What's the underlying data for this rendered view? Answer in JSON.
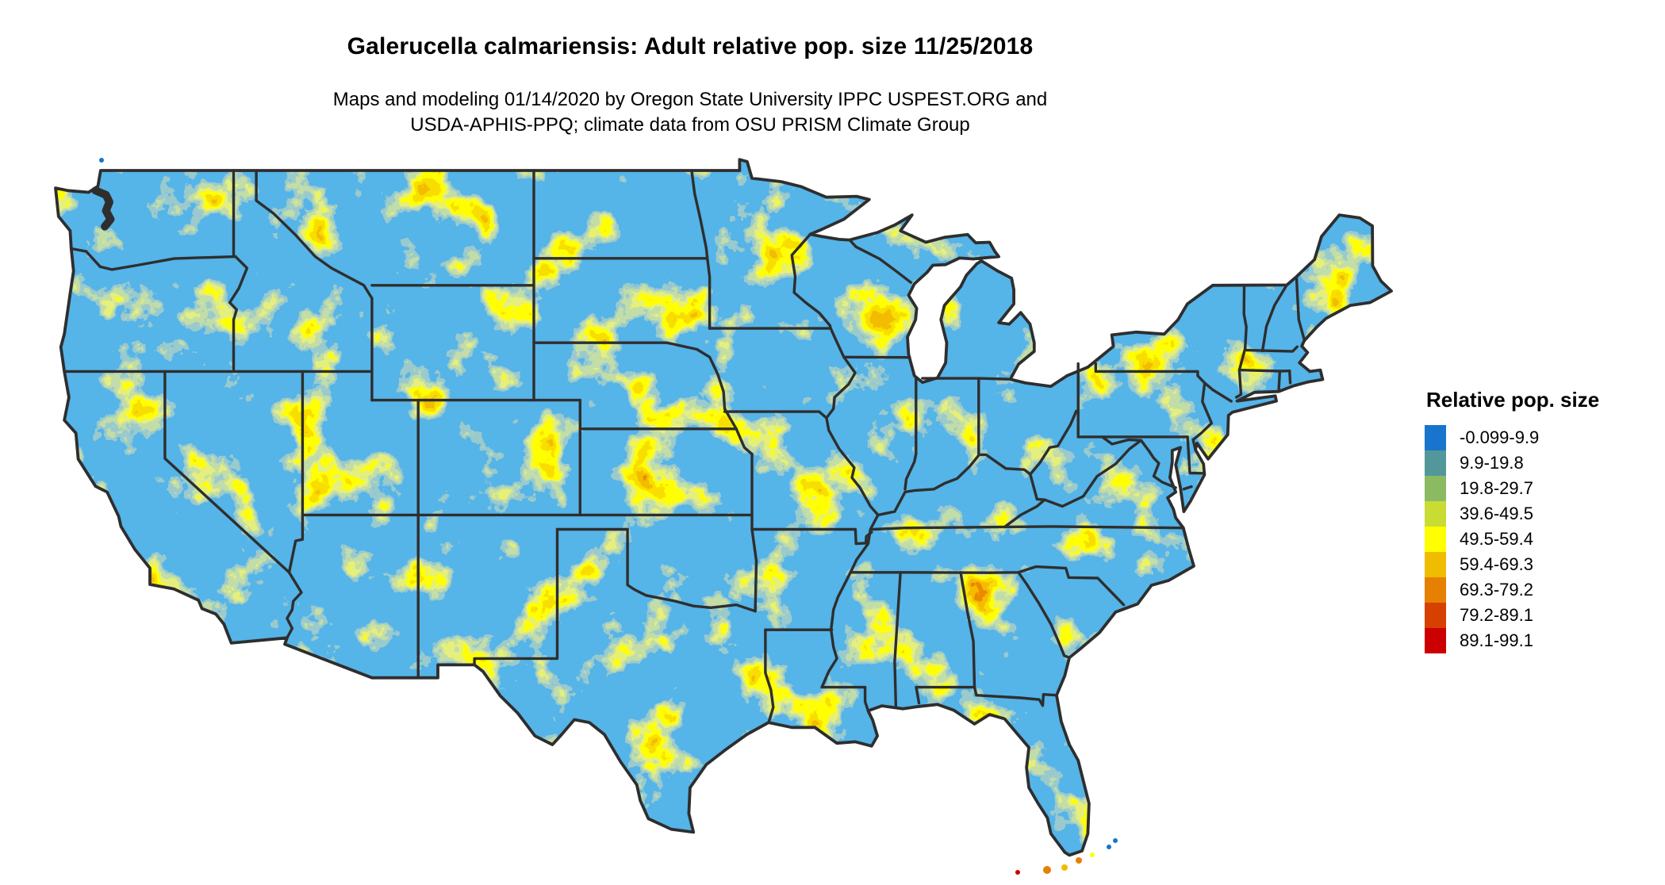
{
  "header": {
    "title": "Galerucella calmariensis: Adult relative pop. size 11/25/2018",
    "subtitle_line1": "Maps and modeling 01/14/2020 by Oregon State University IPPC USPEST.ORG and",
    "subtitle_line2": "USDA-APHIS-PPQ; climate data from OSU PRISM Climate Group"
  },
  "legend": {
    "title": "Relative pop. size",
    "items": [
      {
        "label": "-0.099-9.9",
        "color": "#1874CD"
      },
      {
        "label": "9.9-19.8",
        "color": "#52989B"
      },
      {
        "label": "19.8-29.7",
        "color": "#8BBA63"
      },
      {
        "label": "39.6-49.5",
        "color": "#C8DC34"
      },
      {
        "label": "49.5-59.4",
        "color": "#FFFF00"
      },
      {
        "label": "59.4-69.3",
        "color": "#F0BC00"
      },
      {
        "label": "69.3-79.2",
        "color": "#E68000"
      },
      {
        "label": "79.2-89.1",
        "color": "#D64000"
      },
      {
        "label": "89.1-99.1",
        "color": "#CC0000"
      }
    ]
  },
  "map": {
    "region": "Conterminous United States",
    "projection": "longitude-latitude",
    "background_color": "#FFFFFF",
    "water_color": "#FFFFFF",
    "border_color": "#2E2E2E",
    "dominant_fill": "#1874CD"
  }
}
